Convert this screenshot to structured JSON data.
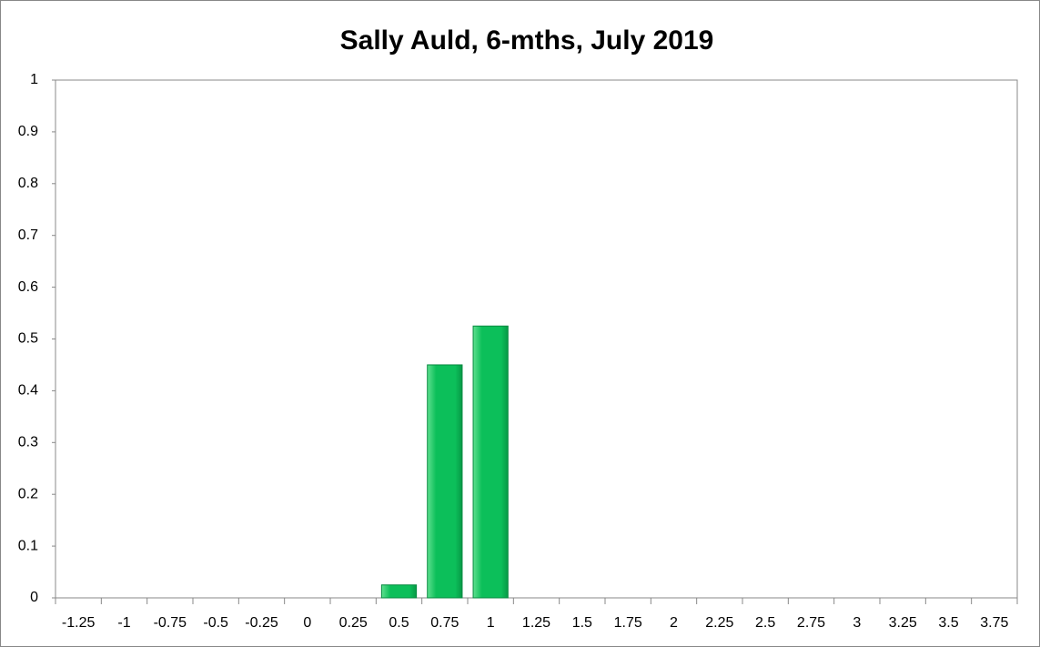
{
  "chart_data": {
    "type": "bar",
    "title": "Sally Auld, 6-mths, July 2019",
    "categories": [
      "-1.25",
      "-1",
      "-0.75",
      "-0.5",
      "-0.25",
      "0",
      "0.25",
      "0.5",
      "0.75",
      "1",
      "1.25",
      "1.5",
      "1.75",
      "2",
      "2.25",
      "2.5",
      "2.75",
      "3",
      "3.25",
      "3.5",
      "3.75"
    ],
    "values": [
      0,
      0,
      0,
      0,
      0,
      0,
      0,
      0.025,
      0.45,
      0.525,
      0,
      0,
      0,
      0,
      0,
      0,
      0,
      0,
      0,
      0,
      0
    ],
    "color": "#0cbf5a",
    "ylim": [
      0,
      1
    ],
    "yticks": [
      0,
      0.1,
      0.2,
      0.3,
      0.4,
      0.5,
      0.6,
      0.7,
      0.8,
      0.9,
      1
    ],
    "grid": false
  }
}
